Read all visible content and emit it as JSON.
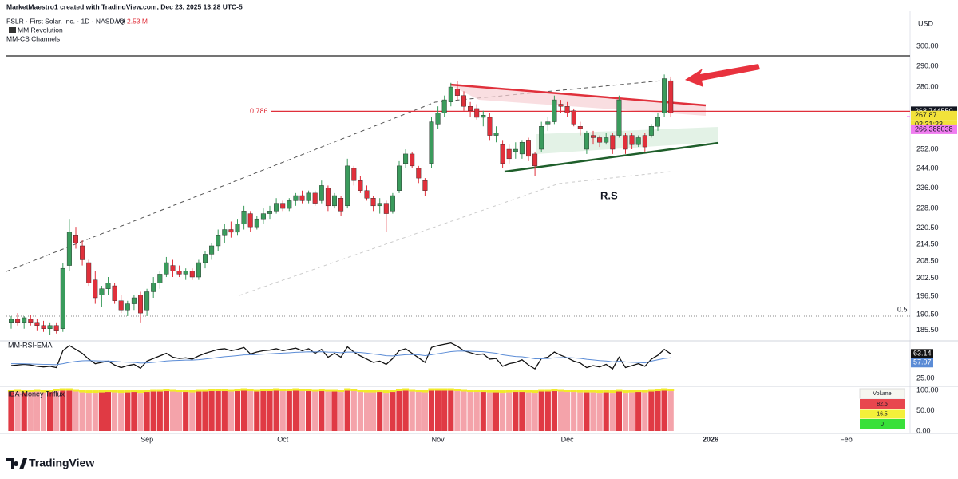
{
  "header": {
    "credit": "MarketMaestro1 created with TradingView.com, Dec 23, 2025 13:28 UTC-5",
    "symbol": "FSLR · First Solar, Inc. · 1D · NASDAQ",
    "vol_label": "Vol",
    "vol_value": "2.53 M",
    "indicator1": "MM Revolution",
    "indicator2": "MM-CS Channels",
    "currency": "USD"
  },
  "chart_data": {
    "type": "candlestick",
    "log": true,
    "up_color": "#3a9b5c",
    "down_color": "#e0303b",
    "ylim": [
      182.7,
      312.4
    ],
    "yticks": [
      {
        "value": 300,
        "label": "300.00"
      },
      {
        "value": 290,
        "label": "290.00"
      },
      {
        "value": 280,
        "label": "280.00"
      },
      {
        "value": 252,
        "label": "252.00"
      },
      {
        "value": 244,
        "label": "244.00"
      },
      {
        "value": 236,
        "label": "236.00"
      },
      {
        "value": 228,
        "label": "228.00"
      },
      {
        "value": 220.5,
        "label": "220.50"
      },
      {
        "value": 214.5,
        "label": "214.50"
      },
      {
        "value": 208.5,
        "label": "208.50"
      },
      {
        "value": 202.5,
        "label": "202.50"
      },
      {
        "value": 196.5,
        "label": "196.50"
      },
      {
        "value": 190.5,
        "label": "190.50"
      },
      {
        "value": 185.5,
        "label": "185.50"
      }
    ],
    "categories": [
      null,
      null,
      null,
      null,
      null,
      null,
      null,
      null,
      null,
      null,
      null,
      null,
      null,
      null,
      null,
      null,
      null,
      null,
      null,
      null,
      null,
      "Sep",
      null,
      null,
      null,
      null,
      null,
      null,
      null,
      null,
      null,
      null,
      null,
      null,
      null,
      null,
      null,
      null,
      null,
      null,
      null,
      null,
      "Oct",
      null,
      null,
      null,
      null,
      null,
      null,
      null,
      null,
      null,
      null,
      null,
      null,
      null,
      null,
      null,
      null,
      null,
      null,
      null,
      null,
      null,
      null,
      null,
      "Nov",
      null,
      null,
      null,
      null,
      null,
      null,
      null,
      null,
      null,
      null,
      null,
      null,
      null,
      null,
      null,
      null,
      null,
      null,
      null,
      "Dec",
      null,
      null,
      null,
      null,
      null,
      null,
      null,
      null,
      null,
      null,
      null,
      null,
      null,
      null,
      null,
      null
    ],
    "future_ticks": [
      "2026",
      "Feb"
    ],
    "candles": [
      [
        188,
        190,
        186,
        189
      ],
      [
        189,
        191,
        187,
        188
      ],
      [
        188,
        190,
        186,
        189.5
      ],
      [
        189,
        190.5,
        187,
        188
      ],
      [
        188,
        189,
        185.5,
        187
      ],
      [
        187,
        188.5,
        185,
        186
      ],
      [
        186,
        188,
        184,
        187
      ],
      [
        187,
        188,
        184.5,
        185.5
      ],
      [
        186,
        208,
        185,
        206
      ],
      [
        207,
        224,
        205,
        219
      ],
      [
        218,
        221,
        213,
        215
      ],
      [
        214,
        216,
        207,
        209
      ],
      [
        208,
        209,
        200,
        201
      ],
      [
        202,
        205,
        194,
        196
      ],
      [
        197,
        200,
        193,
        199
      ],
      [
        199,
        203,
        197,
        201
      ],
      [
        200,
        201,
        194,
        195
      ],
      [
        195,
        197,
        191,
        192
      ],
      [
        192,
        195,
        190,
        194
      ],
      [
        194,
        197,
        192,
        196
      ],
      [
        197,
        198,
        188,
        191
      ],
      [
        192,
        199,
        190,
        198
      ],
      [
        198,
        203,
        196,
        201
      ],
      [
        201,
        205,
        199,
        204
      ],
      [
        204,
        210,
        203,
        208
      ],
      [
        207,
        209,
        203,
        205
      ],
      [
        205,
        207,
        203,
        204
      ],
      [
        204,
        206,
        202,
        205
      ],
      [
        205,
        206,
        202,
        203
      ],
      [
        203,
        209,
        202,
        208
      ],
      [
        208,
        212,
        206,
        211
      ],
      [
        211,
        215,
        209,
        214
      ],
      [
        214,
        220,
        212,
        218
      ],
      [
        218,
        222,
        215,
        220
      ],
      [
        220,
        223,
        217,
        219
      ],
      [
        219,
        224,
        218,
        222
      ],
      [
        222,
        229,
        220,
        227
      ],
      [
        226,
        227,
        219,
        221
      ],
      [
        221,
        225,
        220,
        224
      ],
      [
        224,
        228,
        222,
        226
      ],
      [
        226,
        229,
        224,
        227
      ],
      [
        227,
        232,
        226,
        230
      ],
      [
        230,
        231,
        227,
        228
      ],
      [
        228,
        232,
        227,
        231
      ],
      [
        231,
        234,
        229,
        233
      ],
      [
        233,
        235,
        230,
        231
      ],
      [
        231,
        235,
        230,
        234
      ],
      [
        234,
        235,
        229,
        230
      ],
      [
        231,
        239,
        230,
        237
      ],
      [
        236,
        237,
        227,
        229
      ],
      [
        229,
        234,
        228,
        233
      ],
      [
        232,
        233,
        225,
        227
      ],
      [
        229,
        248,
        228,
        245
      ],
      [
        244,
        245,
        237,
        239
      ],
      [
        239,
        241,
        234,
        235
      ],
      [
        235,
        237,
        231,
        232
      ],
      [
        232,
        233,
        227,
        229
      ],
      [
        229,
        232,
        226,
        230
      ],
      [
        230,
        231,
        219,
        226
      ],
      [
        227,
        234,
        226,
        233
      ],
      [
        235,
        247,
        234,
        245
      ],
      [
        246,
        252,
        244,
        250
      ],
      [
        250,
        251,
        244,
        245
      ],
      [
        244,
        245,
        238,
        240
      ],
      [
        239,
        240,
        233,
        235
      ],
      [
        246,
        266,
        244,
        264
      ],
      [
        263,
        271,
        261,
        268
      ],
      [
        268,
        276,
        266,
        274
      ],
      [
        273,
        282,
        271,
        280
      ],
      [
        279,
        283,
        274,
        276
      ],
      [
        276,
        278,
        269,
        271
      ],
      [
        271,
        273,
        266,
        269
      ],
      [
        270,
        272,
        265,
        266
      ],
      [
        266,
        269,
        262,
        267
      ],
      [
        266,
        268,
        256,
        258
      ],
      [
        258,
        262,
        255,
        259
      ],
      [
        254,
        256,
        244,
        246
      ],
      [
        252,
        254,
        246,
        248
      ],
      [
        251,
        255,
        248,
        252
      ],
      [
        250,
        256,
        248,
        255
      ],
      [
        256,
        257,
        247,
        249
      ],
      [
        250,
        251,
        241,
        245
      ],
      [
        252,
        264,
        251,
        262
      ],
      [
        263,
        266,
        260,
        264
      ],
      [
        264,
        276,
        263,
        274
      ],
      [
        272,
        274,
        268,
        271
      ],
      [
        271,
        273,
        266,
        268
      ],
      [
        269,
        270,
        262,
        263
      ],
      [
        262,
        264,
        258,
        261
      ],
      [
        252,
        260,
        250,
        259
      ],
      [
        258,
        260,
        254,
        257
      ],
      [
        257,
        258,
        253,
        255
      ],
      [
        255,
        259,
        254,
        257
      ],
      [
        258,
        259,
        250,
        252
      ],
      [
        258,
        276,
        257,
        274
      ],
      [
        258,
        259,
        250,
        252
      ],
      [
        258,
        259,
        252,
        254
      ],
      [
        254,
        258,
        253,
        257
      ],
      [
        258,
        259,
        251,
        253
      ],
      [
        258,
        263,
        257,
        262
      ],
      [
        262,
        268,
        260,
        266
      ],
      [
        268,
        286,
        266,
        284
      ],
      [
        283,
        285,
        266,
        267.87
      ]
    ],
    "fib_levels": [
      {
        "label": "0.786",
        "value": 268.74455,
        "value_label": "268.744550",
        "color": "#e0303b"
      },
      {
        "label": "0.5",
        "value": 190
      }
    ],
    "countdown": "02:31:23",
    "indicator_level": {
      "value": 266.388038,
      "color": "#f07cf0"
    },
    "annotation": "R.S",
    "rsi": {
      "name": "MM-RSI-EMA",
      "ylim": [
        18,
        82
      ],
      "yticks": [
        {
          "value": 25,
          "label": "25.00"
        }
      ],
      "series": [
        {
          "name": "RSI",
          "color": "#111111",
          "values": [
            45,
            46,
            47,
            46,
            44,
            43,
            44,
            42,
            68,
            76,
            70,
            64,
            55,
            48,
            50,
            52,
            46,
            42,
            45,
            47,
            41,
            52,
            56,
            60,
            64,
            58,
            56,
            57,
            55,
            60,
            64,
            67,
            70,
            71,
            68,
            70,
            73,
            63,
            66,
            68,
            69,
            71,
            68,
            70,
            72,
            68,
            71,
            64,
            70,
            58,
            64,
            58,
            74,
            66,
            60,
            55,
            50,
            52,
            47,
            56,
            68,
            71,
            64,
            57,
            50,
            73,
            76,
            78,
            80,
            75,
            68,
            65,
            62,
            63,
            55,
            56,
            44,
            48,
            50,
            54,
            46,
            40,
            56,
            58,
            66,
            61,
            57,
            52,
            49,
            42,
            45,
            43,
            47,
            40,
            58,
            42,
            45,
            48,
            44,
            55,
            61,
            70,
            63.14
          ]
        },
        {
          "name": "EMA",
          "color": "#5b8cd6",
          "values": [
            48,
            48,
            47.8,
            47.6,
            47.3,
            47,
            46.8,
            46.4,
            48,
            50,
            51.5,
            52.5,
            52.8,
            52.4,
            52.2,
            52.2,
            51.6,
            50.8,
            50.3,
            50,
            49,
            49.3,
            50,
            51,
            52.2,
            52.8,
            53.1,
            53.5,
            53.6,
            54.2,
            55.2,
            56.3,
            57.6,
            58.8,
            59.6,
            60.5,
            61.6,
            61.7,
            62.1,
            62.7,
            63.2,
            63.9,
            64.3,
            64.8,
            65.5,
            65.8,
            66.3,
            66.2,
            66.5,
            65.8,
            65.7,
            64.9,
            65.8,
            65.8,
            65.3,
            64.3,
            62.9,
            61.9,
            60.3,
            60,
            60.9,
            61.9,
            62.2,
            61.7,
            60.5,
            61.9,
            63.4,
            65,
            66.6,
            67.4,
            67.5,
            67.3,
            66.8,
            66.4,
            65.2,
            64.2,
            61.7,
            60.3,
            59.1,
            58.6,
            57.3,
            55.6,
            55.7,
            56,
            57,
            57.4,
            57.4,
            56.9,
            56.2,
            54.8,
            53.9,
            52.8,
            52.2,
            51,
            51.7,
            50.7,
            50.1,
            49.9,
            49.3,
            52,
            54,
            56,
            57.07
          ]
        }
      ]
    },
    "triflux": {
      "name": "IBA-Money Triflux",
      "ylim": [
        0,
        100
      ],
      "yticks": [
        {
          "value": 100,
          "label": "100.00"
        },
        {
          "value": 50,
          "label": "50.00"
        },
        {
          "value": 0,
          "label": "0.00"
        }
      ],
      "colors": [
        "#e03a44",
        "#f4a3aa"
      ],
      "cap_color": "#f2ea2a",
      "values": [
        96,
        97,
        95,
        96,
        97,
        95,
        96,
        98,
        99,
        99,
        97,
        95,
        94,
        94,
        95,
        96,
        95,
        94,
        95,
        96,
        94,
        96,
        97,
        97,
        98,
        97,
        96,
        96,
        95,
        97,
        97,
        98,
        98,
        98,
        97,
        98,
        99,
        98,
        97,
        98,
        98,
        99,
        98,
        98,
        99,
        98,
        98,
        97,
        98,
        97,
        97,
        96,
        99,
        98,
        96,
        95,
        95,
        96,
        94,
        96,
        98,
        99,
        97,
        96,
        95,
        99,
        99,
        99,
        99,
        98,
        97,
        96,
        96,
        96,
        95,
        95,
        94,
        95,
        96,
        96,
        95,
        94,
        97,
        97,
        98,
        97,
        96,
        96,
        95,
        95,
        95,
        94,
        95,
        94,
        97,
        94,
        95,
        96,
        95,
        97,
        98,
        99,
        98
      ],
      "table": {
        "title": "Volume",
        "rows": [
          {
            "value": 82.5,
            "color": "#e8474e"
          },
          {
            "value": 16.5,
            "color": "#f4f03a"
          },
          {
            "value": 0,
            "color": "#39e03a"
          }
        ]
      }
    }
  },
  "footer": {
    "brand": "TradingView"
  }
}
